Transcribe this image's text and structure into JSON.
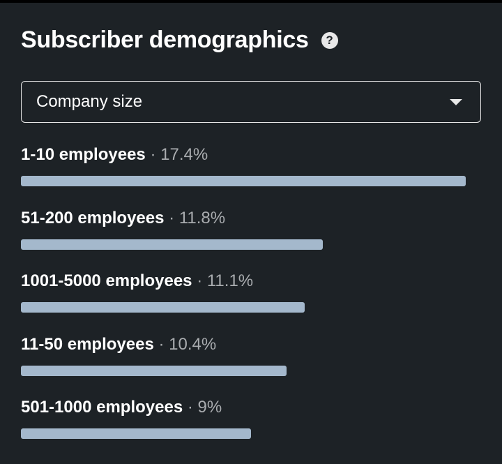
{
  "header": {
    "title": "Subscriber demographics",
    "help_icon": "help-circle-icon"
  },
  "dropdown": {
    "selected": "Company size",
    "icon": "caret-down-icon"
  },
  "separator": "·",
  "bar_color": "#a4b8cc",
  "rows": [
    {
      "label": "1-10 employees",
      "percent_text": "17.4%",
      "percent": 17.4
    },
    {
      "label": "51-200 employees",
      "percent_text": "11.8%",
      "percent": 11.8
    },
    {
      "label": "1001-5000 employees",
      "percent_text": "11.1%",
      "percent": 11.1
    },
    {
      "label": "11-50 employees",
      "percent_text": "10.4%",
      "percent": 10.4
    },
    {
      "label": "501-1000 employees",
      "percent_text": "9%",
      "percent": 9
    }
  ]
}
